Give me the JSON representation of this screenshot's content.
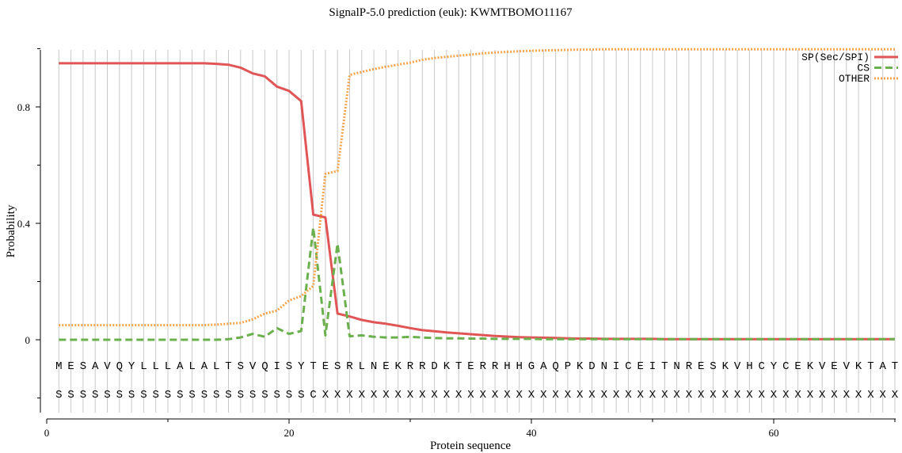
{
  "chart_data": {
    "type": "line",
    "title": "SignalP-5.0 prediction (euk):  KWMTBOMO11167",
    "xlabel": "Protein sequence",
    "ylabel": "Probability",
    "xlim": [
      0,
      70
    ],
    "ylim": [
      -0.25,
      1.0
    ],
    "x_ticks": [
      0,
      20,
      40,
      60
    ],
    "x_minor_ticks": [
      10,
      30,
      50,
      70
    ],
    "y_ticks": [
      0,
      0.4,
      0.8
    ],
    "y_tick_labels": [
      "0",
      "0.4",
      "0.8"
    ],
    "y_minor_ticks": [
      -0.2,
      0.2,
      0.6,
      1.0
    ],
    "grid": "vertical lines at each residue position",
    "legend_position": "top-right",
    "sequence": "MESAVQYLLLALALTSVQISYTESRLNEKRRDKTERRHHGAQPKDNICEITNRESKVHCYCEKVEVKTAT",
    "labels": "SSSSSSSSSSSSSSSSSSSSSCXXXXXXXXXXXXXXXXXXXXXXXXXXXXXXXXXXXXXXXXXXXXXXXX",
    "series": [
      {
        "name": "SP(Sec/SPI)",
        "color": "#e05555",
        "dash": "solid",
        "values": [
          0.95,
          0.95,
          0.95,
          0.95,
          0.95,
          0.95,
          0.95,
          0.95,
          0.95,
          0.95,
          0.95,
          0.95,
          0.95,
          0.948,
          0.945,
          0.935,
          0.915,
          0.905,
          0.87,
          0.855,
          0.82,
          0.43,
          0.42,
          0.09,
          0.08,
          0.068,
          0.06,
          0.055,
          0.048,
          0.04,
          0.033,
          0.029,
          0.025,
          0.022,
          0.019,
          0.016,
          0.013,
          0.011,
          0.009,
          0.008,
          0.007,
          0.006,
          0.005,
          0.004,
          0.004,
          0.003,
          0.003,
          0.003,
          0.003,
          0.003,
          0.002,
          0.002,
          0.002,
          0.002,
          0.002,
          0.002,
          0.002,
          0.002,
          0.002,
          0.002,
          0.002,
          0.002,
          0.002,
          0.002,
          0.002,
          0.002,
          0.002,
          0.002,
          0.002,
          0.002
        ]
      },
      {
        "name": "CS",
        "color": "#6ab04c",
        "dash": "dashed",
        "values": [
          0.0,
          0.0,
          0.0,
          0.0,
          0.0,
          0.0,
          0.0,
          0.0,
          0.0,
          0.0,
          0.0,
          0.0,
          0.0,
          0.0,
          0.002,
          0.008,
          0.02,
          0.01,
          0.04,
          0.02,
          0.03,
          0.385,
          0.015,
          0.33,
          0.012,
          0.015,
          0.01,
          0.008,
          0.008,
          0.01,
          0.008,
          0.006,
          0.005,
          0.005,
          0.004,
          0.004,
          0.003,
          0.003,
          0.003,
          0.003,
          0.002,
          0.002,
          0.002,
          0.002,
          0.002,
          0.002,
          0.002,
          0.002,
          0.002,
          0.002,
          0.002,
          0.002,
          0.002,
          0.002,
          0.002,
          0.002,
          0.002,
          0.002,
          0.002,
          0.002,
          0.002,
          0.002,
          0.002,
          0.002,
          0.002,
          0.002,
          0.002,
          0.002,
          0.002,
          0.002
        ]
      },
      {
        "name": "OTHER",
        "color": "#f5a34a",
        "dash": "dotted",
        "values": [
          0.05,
          0.05,
          0.05,
          0.05,
          0.05,
          0.05,
          0.05,
          0.05,
          0.05,
          0.05,
          0.05,
          0.05,
          0.05,
          0.052,
          0.055,
          0.058,
          0.07,
          0.09,
          0.1,
          0.135,
          0.15,
          0.185,
          0.57,
          0.58,
          0.91,
          0.92,
          0.93,
          0.938,
          0.945,
          0.952,
          0.962,
          0.968,
          0.972,
          0.976,
          0.98,
          0.984,
          0.987,
          0.989,
          0.991,
          0.993,
          0.994,
          0.995,
          0.996,
          0.997,
          0.997,
          0.998,
          0.998,
          0.998,
          0.998,
          0.998,
          0.998,
          0.998,
          0.998,
          0.998,
          0.998,
          0.998,
          0.998,
          0.998,
          0.998,
          0.998,
          0.998,
          0.998,
          0.998,
          0.998,
          0.998,
          0.998,
          0.998,
          0.998,
          0.998,
          0.998
        ]
      }
    ]
  }
}
